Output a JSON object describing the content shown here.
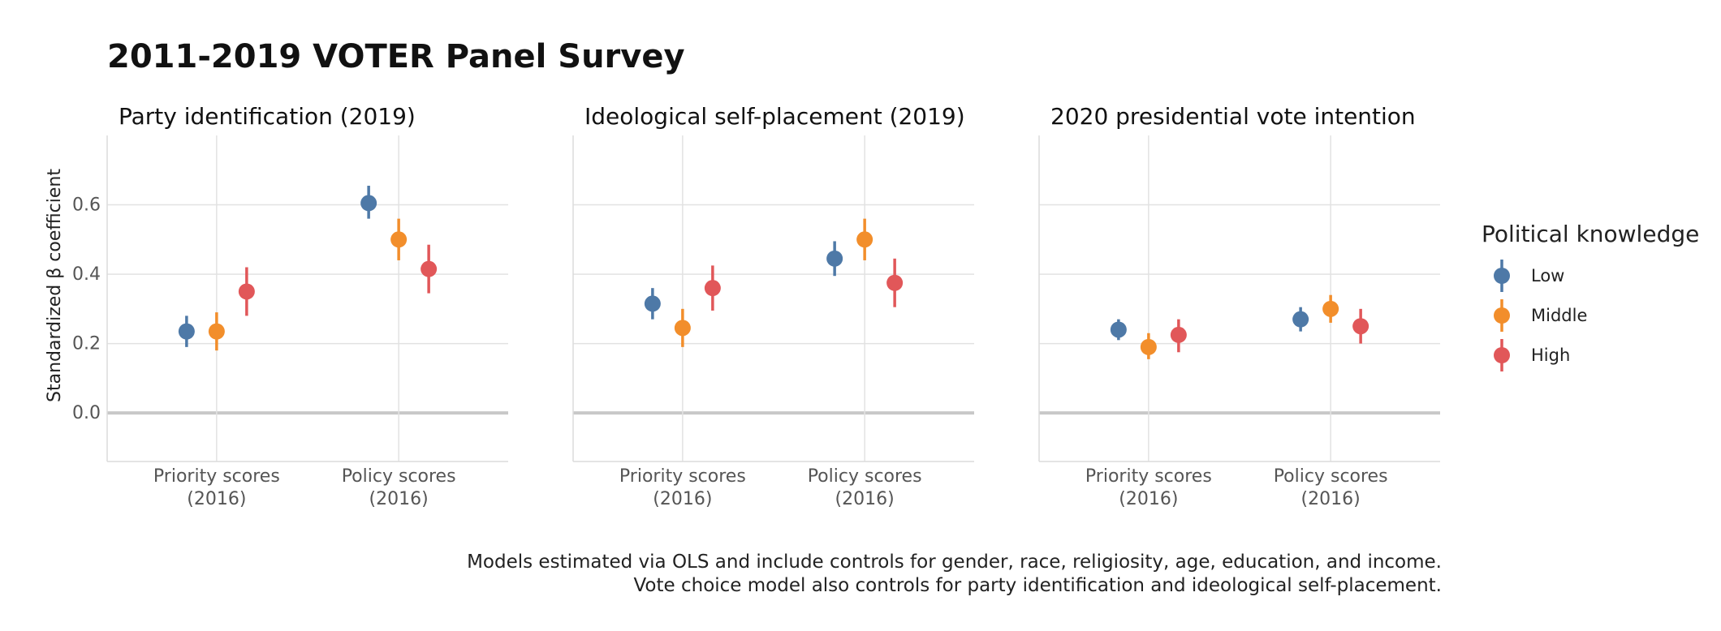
{
  "title": "2011-2019 VOTER Panel Survey",
  "legend": {
    "title": "Political knowledge",
    "items": [
      {
        "label": "Low",
        "color": "#4e79a7"
      },
      {
        "label": "Middle",
        "color": "#f28e2b"
      },
      {
        "label": "High",
        "color": "#e15759"
      }
    ]
  },
  "caption": [
    "Models estimated via OLS and include controls for gender, race, religiosity, age, education, and income.",
    "Vote choice model also controls for party identification and ideological self-placement."
  ],
  "chart_data": {
    "type": "scatter",
    "ylabel": "Standardized β coefficient",
    "ylim": [
      -0.14,
      0.8
    ],
    "yticks": [
      "0.0",
      "0.2",
      "0.4",
      "0.6"
    ],
    "grid": true,
    "legend_position": "right",
    "categories": [
      [
        "Priority scores",
        "(2016)"
      ],
      [
        "Policy scores",
        "(2016)"
      ]
    ],
    "panels": [
      {
        "title": "Party identification (2019)",
        "series": [
          {
            "name": "Low",
            "values": [
              0.235,
              0.605
            ],
            "lower": [
              0.19,
              0.56
            ],
            "upper": [
              0.28,
              0.655
            ]
          },
          {
            "name": "Middle",
            "values": [
              0.235,
              0.5
            ],
            "lower": [
              0.18,
              0.44
            ],
            "upper": [
              0.29,
              0.56
            ]
          },
          {
            "name": "High",
            "values": [
              0.35,
              0.415
            ],
            "lower": [
              0.28,
              0.345
            ],
            "upper": [
              0.42,
              0.485
            ]
          }
        ]
      },
      {
        "title": "Ideological self-placement (2019)",
        "series": [
          {
            "name": "Low",
            "values": [
              0.315,
              0.445
            ],
            "lower": [
              0.27,
              0.395
            ],
            "upper": [
              0.36,
              0.495
            ]
          },
          {
            "name": "Middle",
            "values": [
              0.245,
              0.5
            ],
            "lower": [
              0.19,
              0.44
            ],
            "upper": [
              0.3,
              0.56
            ]
          },
          {
            "name": "High",
            "values": [
              0.36,
              0.375
            ],
            "lower": [
              0.295,
              0.305
            ],
            "upper": [
              0.425,
              0.445
            ]
          }
        ]
      },
      {
        "title": "2020 presidential vote intention",
        "series": [
          {
            "name": "Low",
            "values": [
              0.24,
              0.27
            ],
            "lower": [
              0.21,
              0.235
            ],
            "upper": [
              0.27,
              0.305
            ]
          },
          {
            "name": "Middle",
            "values": [
              0.19,
              0.3
            ],
            "lower": [
              0.155,
              0.26
            ],
            "upper": [
              0.23,
              0.34
            ]
          },
          {
            "name": "High",
            "values": [
              0.225,
              0.25
            ],
            "lower": [
              0.175,
              0.2
            ],
            "upper": [
              0.27,
              0.3
            ]
          }
        ]
      }
    ]
  }
}
